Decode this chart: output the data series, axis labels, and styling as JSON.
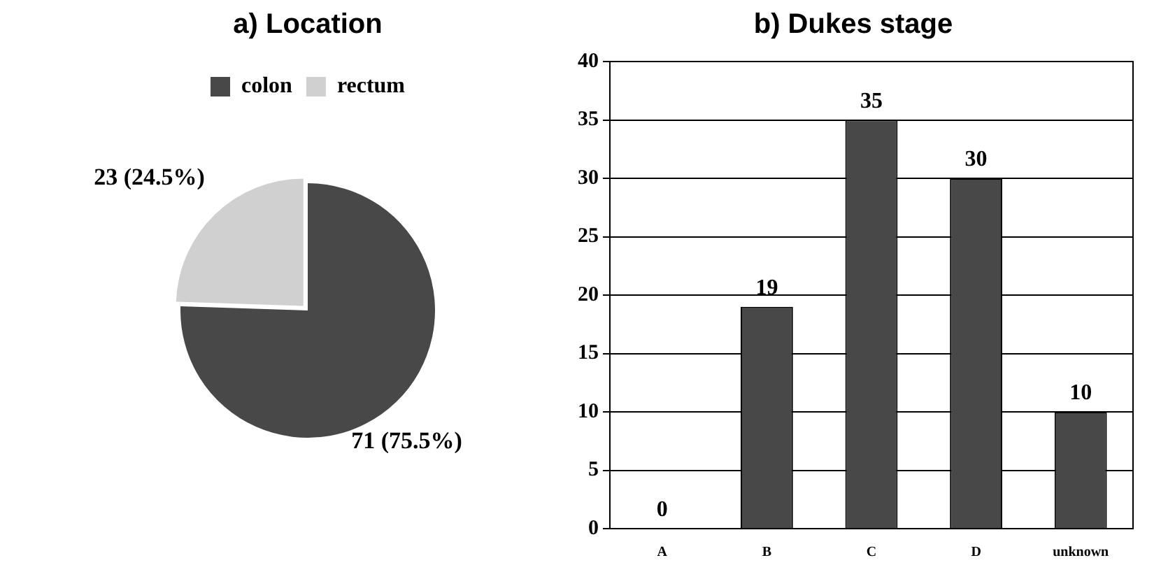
{
  "chart_data": [
    {
      "type": "pie",
      "title": "a) Location",
      "categories": [
        "colon",
        "rectum"
      ],
      "values": [
        71,
        23
      ],
      "colors": [
        "#484848",
        "#d0d0d0"
      ],
      "value_labels": [
        "71 (75.5%)",
        "23 (24.5%)"
      ],
      "legend": "top"
    },
    {
      "type": "bar",
      "title": "b) Dukes stage",
      "categories": [
        "A",
        "B",
        "C",
        "D",
        "unknown"
      ],
      "values": [
        0,
        19,
        35,
        30,
        10
      ],
      "color": "#484848",
      "ylim": [
        0,
        40
      ],
      "yticks": [
        0,
        5,
        10,
        15,
        20,
        25,
        30,
        35,
        40
      ],
      "grid": "y",
      "data_labels": true
    }
  ]
}
